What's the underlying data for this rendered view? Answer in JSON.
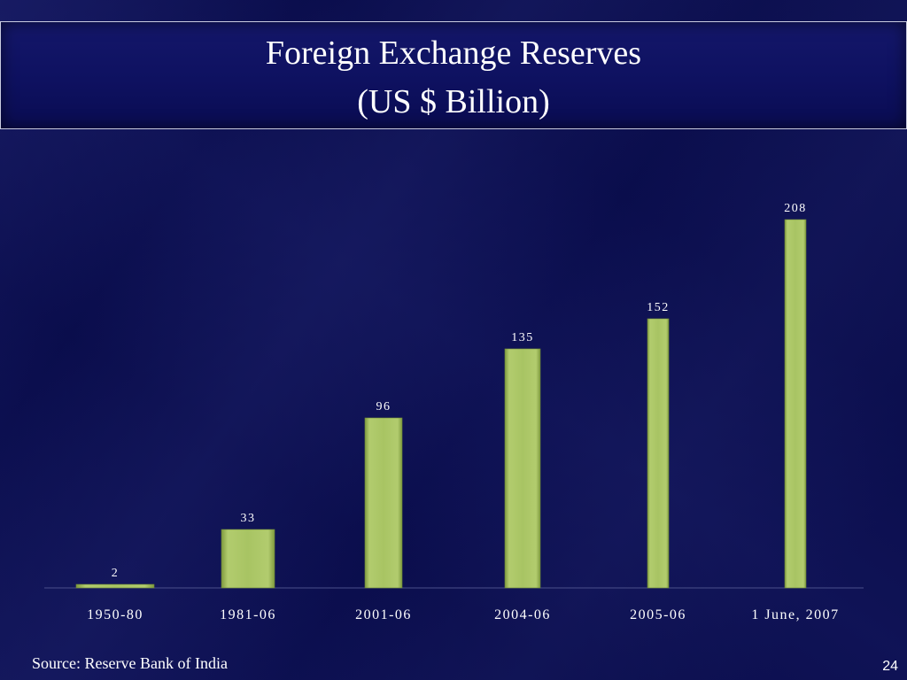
{
  "header": {
    "title_line1": "Foreign Exchange Reserves",
    "title_line2": "(US $ Billion)"
  },
  "footer": {
    "source": "Source: Reserve Bank of  India",
    "page_number": "24"
  },
  "colors": {
    "background": "#0a0d4c",
    "bar": "#a7c462",
    "text": "#ffffff",
    "axis": "#4a4f8a"
  },
  "chart_data": {
    "type": "bar",
    "categories": [
      "1950-80",
      "1981-06",
      "2001-06",
      "2004-06",
      "2005-06",
      "1 June, 2007"
    ],
    "values": [
      2,
      33,
      96,
      135,
      152,
      208
    ],
    "data_labels": [
      "2",
      "33",
      "96",
      "135",
      "152",
      "208"
    ],
    "title": "Foreign Exchange Reserves\n(US $ Billion)",
    "xlabel": "",
    "ylabel": "",
    "ylim": [
      0,
      210
    ],
    "grid": false,
    "legend": "none"
  }
}
